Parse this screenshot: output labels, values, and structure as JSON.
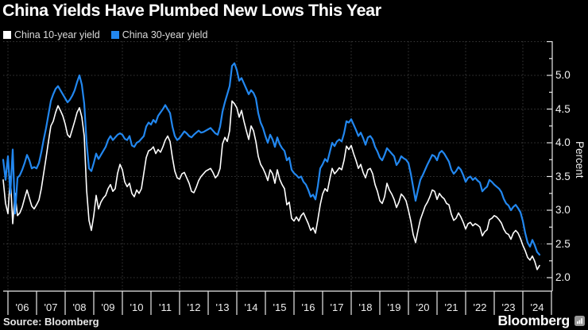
{
  "header": {
    "title": "China Yields Have Plumbed New Lows This Year"
  },
  "legend": {
    "items": [
      {
        "label": "China 10-year yield",
        "color": "#ffffff"
      },
      {
        "label": "China 30-year yield",
        "color": "#2287ef"
      }
    ]
  },
  "footer": {
    "source": "Source: Bloomberg",
    "brand": "Bloomberg",
    "brand_icon": "bar-chart-icon"
  },
  "colors": {
    "background": "#000000",
    "grid": "#3a3a3a",
    "axis": "#e9e9e9",
    "series_10y": "#ffffff",
    "series_30y": "#2287ef"
  },
  "chart_data": {
    "type": "line",
    "title": "China Yields Have Plumbed New Lows This Year",
    "xlabel": "",
    "ylabel": "Percent",
    "ylim": [
      1.8,
      5.55
    ],
    "grid": "dotted",
    "legend_position": "top-left",
    "y_tick_values": [
      5.0,
      4.5,
      4.0,
      3.5,
      3.0,
      2.5,
      2.0
    ],
    "y_tick_labels": [
      "5.0",
      "4.5",
      "4.0",
      "3.5",
      "3.0",
      "2.5",
      "2.0"
    ],
    "y_minor_step": 0.25,
    "y_grid_values": [
      2.0,
      2.5,
      3.0,
      3.5,
      4.0,
      4.5,
      5.0,
      5.5
    ],
    "x_tick_labels": [
      "'06",
      "'07",
      "'08",
      "'09",
      "'10",
      "'11",
      "'12",
      "'13",
      "'14",
      "'15",
      "'16",
      "'17",
      "'18",
      "'19",
      "'20",
      "'21",
      "'22",
      "'23",
      "'24"
    ],
    "x_grid_years": [
      2006,
      2008,
      2010,
      2012,
      2014,
      2016,
      2018,
      2020,
      2022,
      2024
    ],
    "x_start": "2005-11",
    "x_step": "monthly",
    "series": [
      {
        "name": "China 10-year yield",
        "color": "#ffffff",
        "width": 1.6,
        "monthly_values": [
          3.45,
          3.1,
          2.95,
          3.5,
          2.8,
          3.25,
          2.92,
          2.96,
          3.05,
          3.18,
          3.3,
          3.18,
          3.06,
          3.02,
          3.08,
          3.15,
          3.32,
          3.55,
          3.78,
          4.02,
          4.25,
          4.32,
          4.45,
          4.55,
          4.48,
          4.4,
          4.28,
          4.12,
          4.08,
          4.2,
          4.32,
          4.45,
          4.52,
          4.38,
          4.1,
          3.3,
          2.85,
          2.7,
          2.92,
          3.22,
          3.02,
          3.12,
          3.18,
          3.22,
          3.32,
          3.38,
          3.28,
          3.32,
          3.55,
          3.68,
          3.6,
          3.42,
          3.35,
          3.4,
          3.25,
          3.2,
          3.3,
          3.25,
          3.32,
          3.55,
          3.78,
          3.88,
          3.9,
          3.94,
          3.84,
          3.9,
          3.86,
          3.94,
          4.04,
          4.1,
          4.02,
          3.78,
          3.58,
          3.48,
          3.46,
          3.54,
          3.56,
          3.48,
          3.4,
          3.28,
          3.26,
          3.34,
          3.44,
          3.5,
          3.54,
          3.58,
          3.6,
          3.62,
          3.56,
          3.48,
          3.52,
          3.62,
          3.98,
          4.08,
          4.02,
          4.18,
          4.62,
          4.58,
          4.52,
          4.38,
          4.48,
          4.32,
          4.18,
          4.05,
          4.25,
          4.18,
          4.02,
          3.8,
          3.68,
          3.62,
          3.54,
          3.44,
          3.6,
          3.54,
          3.4,
          3.6,
          3.46,
          3.38,
          3.32,
          3.08,
          3.12,
          2.88,
          2.84,
          2.9,
          2.84,
          2.92,
          2.96,
          2.88,
          2.8,
          2.7,
          2.74,
          2.66,
          2.86,
          3.08,
          3.24,
          3.32,
          3.28,
          3.46,
          3.62,
          3.54,
          3.58,
          3.63,
          3.6,
          3.74,
          3.95,
          3.9,
          3.96,
          3.84,
          3.74,
          3.62,
          3.68,
          3.56,
          3.48,
          3.6,
          3.62,
          3.54,
          3.38,
          3.28,
          3.14,
          3.1,
          3.2,
          3.4,
          3.3,
          3.24,
          3.16,
          3.04,
          3.12,
          3.24,
          3.2,
          3.14,
          3.0,
          2.84,
          2.64,
          2.52,
          2.7,
          2.86,
          2.96,
          3.06,
          3.12,
          3.2,
          3.3,
          3.28,
          3.16,
          3.25,
          3.2,
          3.17,
          3.1,
          3.08,
          2.94,
          2.85,
          2.88,
          2.96,
          2.9,
          2.82,
          2.72,
          2.8,
          2.82,
          2.77,
          2.8,
          2.78,
          2.75,
          2.62,
          2.68,
          2.71,
          2.86,
          2.88,
          2.92,
          2.9,
          2.86,
          2.81,
          2.72,
          2.66,
          2.64,
          2.57,
          2.66,
          2.7,
          2.66,
          2.58,
          2.48,
          2.4,
          2.3,
          2.26,
          2.32,
          2.24,
          2.12,
          2.18
        ]
      },
      {
        "name": "China 30-year yield",
        "color": "#2287ef",
        "width": 2.2,
        "monthly_values": [
          3.75,
          3.45,
          3.8,
          3.25,
          3.9,
          2.95,
          3.48,
          3.52,
          3.6,
          3.7,
          3.82,
          3.74,
          3.62,
          3.64,
          3.62,
          3.7,
          3.86,
          4.05,
          4.22,
          4.42,
          4.62,
          4.72,
          4.8,
          4.84,
          4.78,
          4.72,
          4.66,
          4.6,
          4.64,
          4.7,
          4.78,
          4.9,
          5.0,
          4.86,
          4.58,
          4.0,
          3.62,
          3.58,
          3.7,
          3.84,
          3.76,
          3.82,
          3.88,
          3.94,
          4.04,
          4.1,
          4.04,
          4.08,
          4.12,
          4.14,
          4.12,
          4.06,
          4.04,
          4.1,
          3.96,
          3.94,
          4.0,
          4.02,
          4.06,
          4.1,
          4.24,
          4.3,
          4.27,
          4.34,
          4.3,
          4.4,
          4.45,
          4.5,
          4.56,
          4.5,
          4.44,
          4.24,
          4.1,
          4.04,
          4.07,
          4.12,
          4.17,
          4.14,
          4.1,
          4.08,
          4.12,
          4.15,
          4.18,
          4.15,
          4.16,
          4.18,
          4.2,
          4.22,
          4.18,
          4.14,
          4.12,
          4.24,
          4.46,
          4.6,
          4.72,
          4.84,
          5.14,
          5.18,
          5.08,
          4.92,
          4.96,
          4.88,
          4.8,
          4.72,
          4.78,
          4.74,
          4.66,
          4.44,
          4.3,
          4.22,
          4.1,
          4.0,
          4.12,
          4.05,
          3.94,
          4.08,
          3.98,
          3.92,
          3.88,
          3.74,
          3.78,
          3.6,
          3.55,
          3.52,
          3.48,
          3.5,
          3.42,
          3.38,
          3.3,
          3.2,
          3.23,
          3.16,
          3.36,
          3.62,
          3.68,
          3.76,
          3.72,
          3.86,
          4.0,
          3.95,
          4.02,
          4.05,
          4.02,
          4.14,
          4.32,
          4.3,
          4.35,
          4.27,
          4.19,
          4.1,
          4.15,
          4.07,
          3.97,
          4.08,
          4.1,
          4.05,
          3.94,
          3.87,
          3.78,
          3.74,
          3.82,
          3.92,
          3.88,
          3.84,
          3.8,
          3.67,
          3.72,
          3.8,
          3.77,
          3.75,
          3.7,
          3.54,
          3.34,
          3.14,
          3.3,
          3.45,
          3.52,
          3.6,
          3.68,
          3.75,
          3.82,
          3.8,
          3.74,
          3.85,
          3.88,
          3.84,
          3.78,
          3.72,
          3.6,
          3.54,
          3.58,
          3.64,
          3.6,
          3.52,
          3.42,
          3.48,
          3.5,
          3.45,
          3.48,
          3.44,
          3.41,
          3.28,
          3.32,
          3.35,
          3.45,
          3.42,
          3.38,
          3.35,
          3.32,
          3.27,
          3.17,
          3.1,
          3.07,
          3.0,
          3.05,
          3.08,
          3.03,
          2.97,
          2.84,
          2.66,
          2.52,
          2.46,
          2.56,
          2.48,
          2.38,
          2.34
        ]
      }
    ]
  }
}
